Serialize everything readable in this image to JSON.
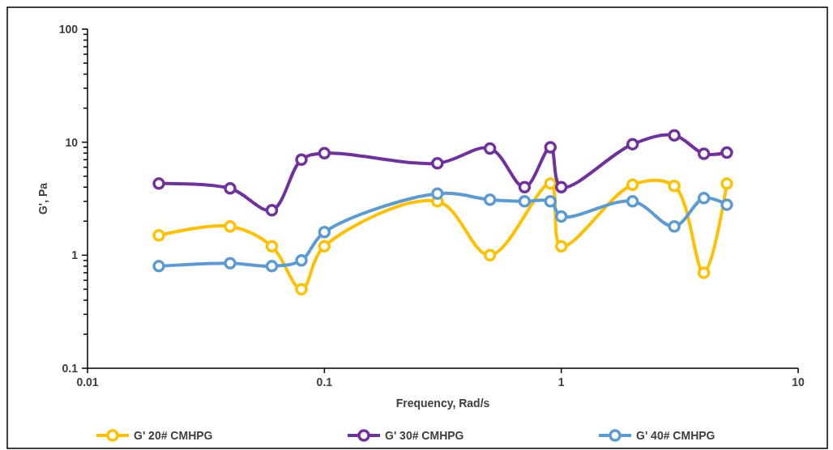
{
  "chart_data": {
    "type": "line",
    "xlabel": "Frequency, Rad/s",
    "ylabel": "G', Pa",
    "log": "xy",
    "grid": false,
    "legend": "bottom",
    "marker": "circle",
    "line_style": "solid",
    "x": [
      0.02,
      0.04,
      0.06,
      0.08,
      0.1,
      0.3,
      0.5,
      0.7,
      0.9,
      1,
      2,
      3,
      4,
      5
    ],
    "xlim": [
      0.01,
      10
    ],
    "xticks": [
      0.01,
      0.1,
      1,
      10
    ],
    "ylim": [
      0.1,
      100
    ],
    "yticks": [
      0.1,
      {
        "value": 0.2,
        "label": null
      },
      {
        "value": 0.3,
        "label": null
      },
      {
        "value": 0.4,
        "label": null
      },
      {
        "value": 0.5,
        "label": null
      },
      {
        "value": 0.6,
        "label": null
      },
      {
        "value": 0.7,
        "label": null
      },
      {
        "value": 0.8,
        "label": null
      },
      {
        "value": 0.9,
        "label": null
      },
      1,
      {
        "value": 2,
        "label": null
      },
      {
        "value": 3,
        "label": null
      },
      {
        "value": 4,
        "label": null
      },
      {
        "value": 5,
        "label": null
      },
      {
        "value": 6,
        "label": null
      },
      {
        "value": 7,
        "label": null
      },
      {
        "value": 8,
        "label": null
      },
      {
        "value": 9,
        "label": null
      },
      10,
      {
        "value": 20,
        "label": null
      },
      {
        "value": 30,
        "label": null
      },
      {
        "value": 40,
        "label": null
      },
      {
        "value": 50,
        "label": null
      },
      {
        "value": 60,
        "label": null
      },
      {
        "value": 70,
        "label": null
      },
      {
        "value": 80,
        "label": null
      },
      {
        "value": 90,
        "label": null
      },
      100
    ],
    "series": [
      {
        "name": "G' 20# CMHPG",
        "color": "#ffc000",
        "values": [
          1.5,
          1.8,
          1.2,
          0.5,
          1.2,
          3,
          1,
          null,
          4.3,
          1.2,
          4.2,
          4.1,
          0.7,
          4.3
        ]
      },
      {
        "name": "G' 30# CMHPG",
        "color": "#7030a0",
        "values": [
          4.3,
          3.9,
          2.5,
          7,
          8,
          6.5,
          8.8,
          4,
          9,
          4,
          9.6,
          11.5,
          7.9,
          8.1
        ]
      },
      {
        "name": "G' 40# CMHPG",
        "color": "#5b9bd5",
        "values": [
          0.8,
          0.85,
          0.8,
          0.9,
          1.6,
          3.5,
          3.1,
          3,
          3,
          2.2,
          3,
          1.8,
          3.2,
          2.8
        ]
      }
    ]
  }
}
